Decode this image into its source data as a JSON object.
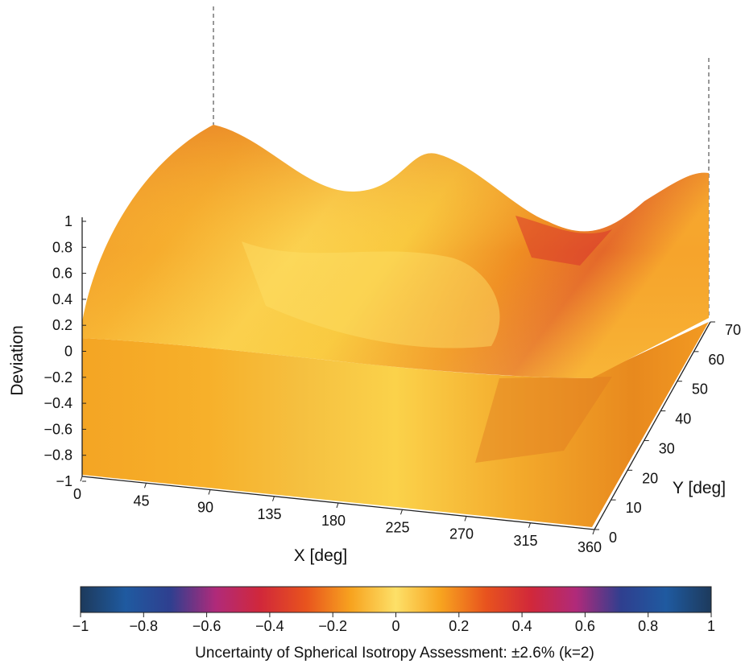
{
  "chart_data": {
    "type": "surface3d",
    "title": "",
    "xlabel": "X [deg]",
    "ylabel": "Y [deg]",
    "zlabel": "Deviation",
    "x_ticks": [
      "0",
      "45",
      "90",
      "135",
      "180",
      "225",
      "270",
      "315",
      "360"
    ],
    "y_ticks": [
      "0",
      "10",
      "20",
      "30",
      "40",
      "50",
      "60",
      "70"
    ],
    "z_ticks": [
      "−1",
      "−0.8",
      "−0.6",
      "−0.4",
      "−0.2",
      "0",
      "0.2",
      "0.4",
      "0.6",
      "0.8",
      "1"
    ],
    "xlim": [
      0,
      360
    ],
    "ylim": [
      0,
      70
    ],
    "zlim": [
      -1,
      1
    ],
    "colorbar": {
      "ticks": [
        "−1",
        "−0.8",
        "−0.6",
        "−0.4",
        "−0.2",
        "0",
        "0.2",
        "0.4",
        "0.6",
        "0.8",
        "1"
      ],
      "range": [
        -1,
        1
      ],
      "colormap": [
        "#1d3a5c",
        "#1f5aa0",
        "#2f3f8f",
        "#b02a7a",
        "#d1283a",
        "#e8531e",
        "#f7a31f",
        "#fde068",
        "#f7a31f",
        "#e8531e",
        "#d1283a",
        "#b02a7a",
        "#2f3f8f",
        "#1f5aa0",
        "#1d3a5c"
      ]
    },
    "caption": "Uncertainty of Spherical Isotropy Assessment: ±2.6% (k=2)",
    "surfaces": [
      {
        "role": "deviation-surface",
        "x_back_profile": [
          0,
          45,
          90,
          135,
          180,
          225,
          270,
          315,
          360
        ],
        "z_back_profile": [
          0.95,
          0.8,
          0.62,
          0.72,
          0.85,
          0.6,
          0.38,
          0.55,
          0.9
        ]
      },
      {
        "role": "projection-plane",
        "z": -1
      }
    ]
  }
}
